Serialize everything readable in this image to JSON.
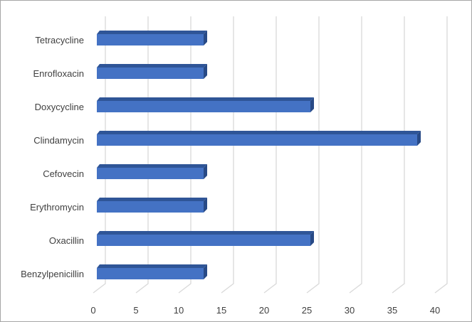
{
  "chart_data": {
    "type": "bar",
    "orientation": "horizontal",
    "style": "3d-clustered",
    "categories": [
      "Tetracycline",
      "Enrofloxacin",
      "Doxycycline",
      "Clindamycin",
      "Cefovecin",
      "Erythromycin",
      "Oxacillin",
      "Benzylpenicillin"
    ],
    "values": [
      12.5,
      12.5,
      25,
      37.5,
      12.5,
      12.5,
      25,
      12.5
    ],
    "xlim": [
      0,
      40
    ],
    "xticks": [
      "0",
      "5",
      "10",
      "15",
      "20",
      "25",
      "30",
      "35",
      "40"
    ],
    "grid": true,
    "legend": "none",
    "colors": {
      "bar_front": "#4472c4",
      "bar_top": "#2f5597",
      "bar_side": "#284a86",
      "grid": "#d9d9d9"
    }
  }
}
